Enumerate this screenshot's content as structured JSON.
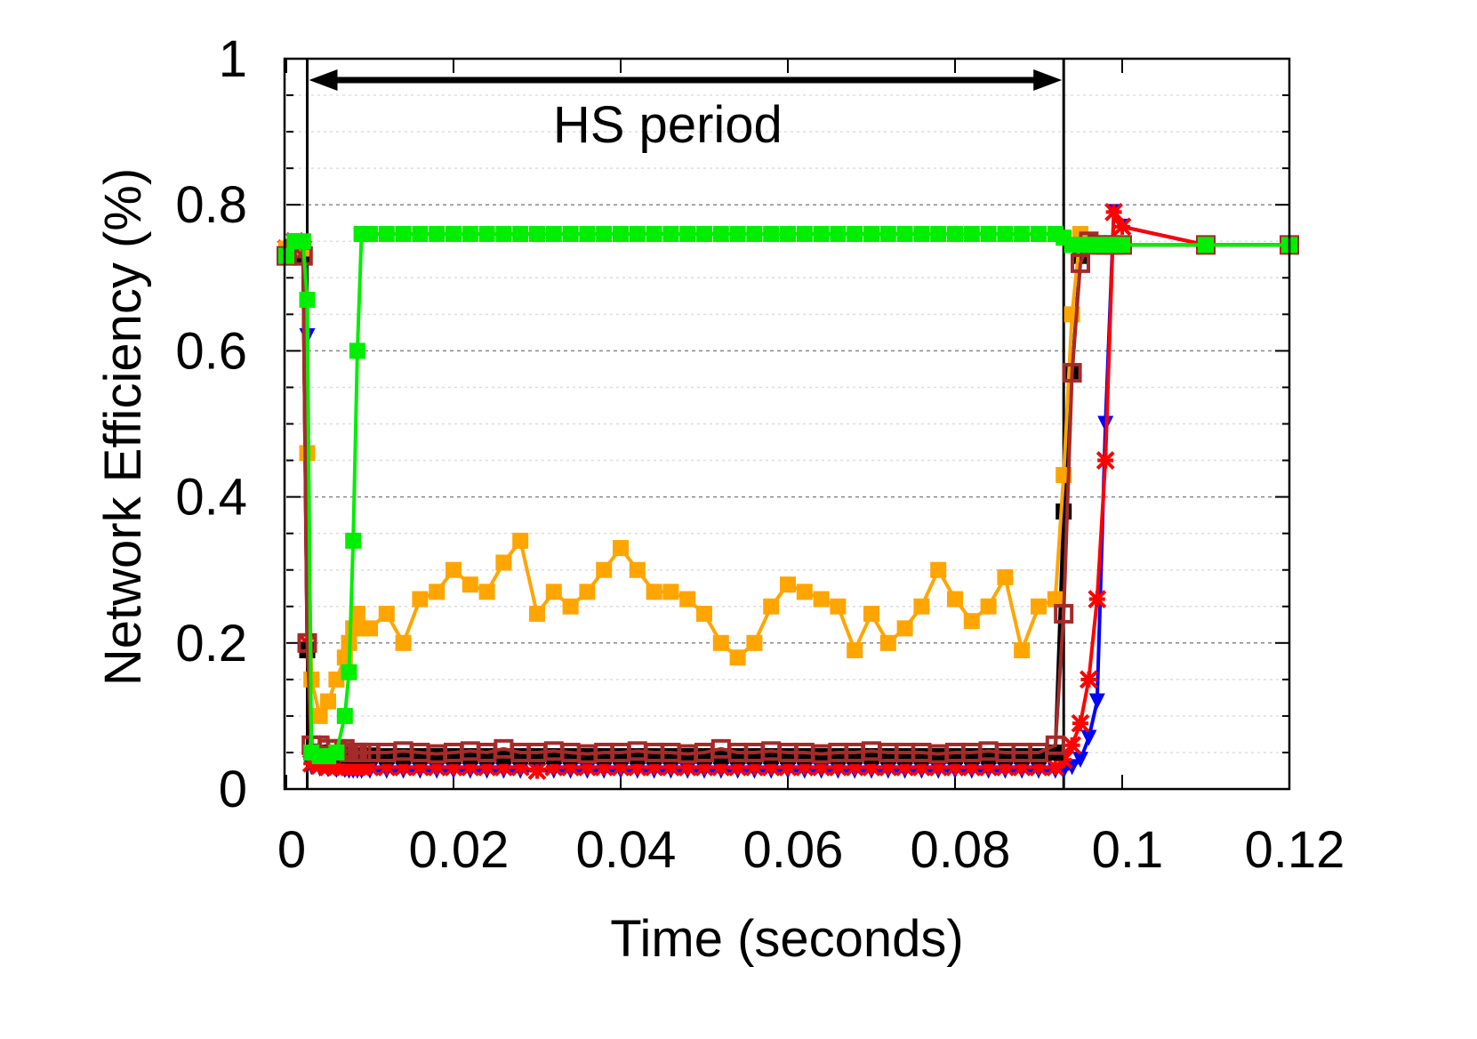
{
  "chart_data": {
    "type": "line",
    "xlabel": "Time (seconds)",
    "ylabel": "Network Efficiency (%)",
    "xlim": [
      0,
      0.12
    ],
    "xticks": [
      0,
      0.02,
      0.04,
      0.06,
      0.08,
      0.1,
      0.12
    ],
    "ylim": [
      0,
      1
    ],
    "yticks": [
      0,
      0.2,
      0.4,
      0.6,
      0.8,
      1
    ],
    "y_minor_ticks": [
      0.05,
      0.1,
      0.15,
      0.25,
      0.3,
      0.35,
      0.45,
      0.5,
      0.55,
      0.65,
      0.7,
      0.75,
      0.85,
      0.9,
      0.95
    ],
    "grid": true,
    "hs_period": {
      "label": "HS period",
      "start": 0.0025,
      "end": 0.093
    },
    "x": [
      0,
      0.001,
      0.002,
      0.0025,
      0.003,
      0.004,
      0.005,
      0.006,
      0.007,
      0.0075,
      0.008,
      0.0085,
      0.009,
      0.01,
      0.012,
      0.014,
      0.016,
      0.018,
      0.02,
      0.022,
      0.024,
      0.026,
      0.028,
      0.03,
      0.032,
      0.034,
      0.036,
      0.038,
      0.04,
      0.042,
      0.044,
      0.046,
      0.048,
      0.05,
      0.052,
      0.054,
      0.056,
      0.058,
      0.06,
      0.062,
      0.064,
      0.066,
      0.068,
      0.07,
      0.072,
      0.074,
      0.076,
      0.078,
      0.08,
      0.082,
      0.084,
      0.086,
      0.088,
      0.09,
      0.092,
      0.093,
      0.094,
      0.095,
      0.096,
      0.097,
      0.098,
      0.099,
      0.1,
      0.11,
      0.12
    ],
    "series": [
      {
        "color": "#0000ff",
        "marker": "triangle",
        "values": [
          0.74,
          0.75,
          0.74,
          0.62,
          0.03,
          0.028,
          0.027,
          0.026,
          0.026,
          0.025,
          0.025,
          0.025,
          0.025,
          0.025,
          0.025,
          0.025,
          0.025,
          0.025,
          0.025,
          0.025,
          0.025,
          0.025,
          0.025,
          0.025,
          0.025,
          0.025,
          0.025,
          0.025,
          0.025,
          0.025,
          0.025,
          0.025,
          0.025,
          0.025,
          0.025,
          0.025,
          0.025,
          0.025,
          0.025,
          0.025,
          0.025,
          0.025,
          0.025,
          0.025,
          0.025,
          0.025,
          0.025,
          0.025,
          0.025,
          0.025,
          0.025,
          0.025,
          0.025,
          0.025,
          0.025,
          0.025,
          0.03,
          0.04,
          0.07,
          0.12,
          0.5,
          0.79,
          0.77,
          0.745,
          0.745
        ]
      },
      {
        "color": "#ff0000",
        "marker": "asterisk",
        "values": [
          0.74,
          0.75,
          0.74,
          0.2,
          0.035,
          0.032,
          0.03,
          0.03,
          0.03,
          0.03,
          0.03,
          0.03,
          0.03,
          0.03,
          0.03,
          0.03,
          0.03,
          0.03,
          0.03,
          0.03,
          0.03,
          0.03,
          0.03,
          0.025,
          0.03,
          0.03,
          0.03,
          0.03,
          0.03,
          0.03,
          0.03,
          0.03,
          0.03,
          0.03,
          0.03,
          0.03,
          0.03,
          0.03,
          0.03,
          0.03,
          0.03,
          0.03,
          0.03,
          0.03,
          0.03,
          0.03,
          0.03,
          0.03,
          0.03,
          0.03,
          0.03,
          0.03,
          0.03,
          0.03,
          0.03,
          0.04,
          0.06,
          0.09,
          0.15,
          0.26,
          0.45,
          0.79,
          0.77,
          0.745,
          0.745
        ]
      },
      {
        "color": "#000000",
        "marker": "square",
        "values": [
          0.73,
          0.74,
          0.73,
          0.19,
          0.05,
          0.05,
          0.048,
          0.048,
          0.047,
          0.046,
          0.046,
          0.046,
          0.046,
          0.046,
          0.045,
          0.045,
          0.045,
          0.045,
          0.045,
          0.045,
          0.045,
          0.045,
          0.045,
          0.045,
          0.045,
          0.045,
          0.045,
          0.045,
          0.045,
          0.045,
          0.045,
          0.045,
          0.045,
          0.045,
          0.045,
          0.045,
          0.045,
          0.045,
          0.045,
          0.045,
          0.045,
          0.045,
          0.045,
          0.045,
          0.045,
          0.045,
          0.045,
          0.045,
          0.045,
          0.045,
          0.045,
          0.045,
          0.045,
          0.045,
          0.05,
          0.38,
          0.57,
          0.73,
          0.75,
          0.745,
          0.745,
          0.745,
          0.745,
          0.745,
          0.745
        ]
      },
      {
        "color": "#ffa500",
        "marker": "filled-square",
        "values": [
          0.74,
          0.75,
          0.74,
          0.46,
          0.15,
          0.1,
          0.12,
          0.15,
          0.18,
          0.2,
          0.22,
          0.24,
          0.22,
          0.22,
          0.24,
          0.2,
          0.26,
          0.27,
          0.3,
          0.28,
          0.27,
          0.31,
          0.34,
          0.24,
          0.27,
          0.25,
          0.27,
          0.3,
          0.33,
          0.3,
          0.27,
          0.27,
          0.26,
          0.24,
          0.2,
          0.18,
          0.2,
          0.25,
          0.28,
          0.27,
          0.26,
          0.25,
          0.19,
          0.24,
          0.2,
          0.22,
          0.25,
          0.3,
          0.26,
          0.23,
          0.25,
          0.29,
          0.19,
          0.25,
          0.26,
          0.43,
          0.65,
          0.76,
          0.745,
          0.745,
          0.745,
          0.745,
          0.745,
          0.745,
          0.745
        ]
      },
      {
        "color": "#a52a2a",
        "marker": "open-square",
        "values": [
          0.73,
          0.74,
          0.73,
          0.2,
          0.06,
          0.06,
          0.055,
          0.055,
          0.055,
          0.05,
          0.05,
          0.05,
          0.05,
          0.05,
          0.05,
          0.052,
          0.05,
          0.048,
          0.05,
          0.052,
          0.05,
          0.055,
          0.05,
          0.05,
          0.052,
          0.05,
          0.048,
          0.05,
          0.05,
          0.052,
          0.05,
          0.05,
          0.048,
          0.05,
          0.055,
          0.05,
          0.05,
          0.052,
          0.05,
          0.05,
          0.048,
          0.05,
          0.05,
          0.052,
          0.05,
          0.05,
          0.05,
          0.048,
          0.05,
          0.05,
          0.052,
          0.05,
          0.05,
          0.05,
          0.06,
          0.24,
          0.57,
          0.72,
          0.75,
          0.745,
          0.745,
          0.745,
          0.745,
          0.745,
          0.745
        ]
      },
      {
        "color": "#00ee00",
        "marker": "filled-square",
        "values": [
          0.73,
          0.75,
          0.75,
          0.67,
          0.05,
          0.045,
          0.045,
          0.05,
          0.1,
          0.16,
          0.34,
          0.6,
          0.76,
          0.76,
          0.76,
          0.76,
          0.76,
          0.76,
          0.76,
          0.76,
          0.76,
          0.76,
          0.76,
          0.76,
          0.76,
          0.76,
          0.76,
          0.76,
          0.76,
          0.76,
          0.76,
          0.76,
          0.76,
          0.76,
          0.76,
          0.76,
          0.76,
          0.76,
          0.76,
          0.76,
          0.76,
          0.76,
          0.76,
          0.76,
          0.76,
          0.76,
          0.76,
          0.76,
          0.76,
          0.76,
          0.76,
          0.76,
          0.76,
          0.76,
          0.76,
          0.755,
          0.745,
          0.745,
          0.745,
          0.745,
          0.745,
          0.745,
          0.745,
          0.745,
          0.745
        ]
      }
    ]
  }
}
